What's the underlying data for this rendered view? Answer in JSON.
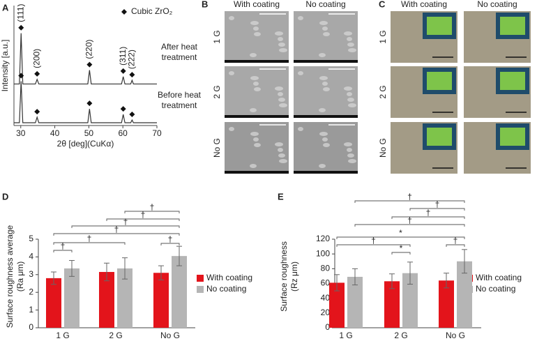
{
  "chart_data": [
    {
      "panel": "A",
      "type": "line",
      "xlabel": "2θ [deg](CuKα)",
      "ylabel": "Intensity [a.u.]",
      "legend": "Cubic ZrO₂",
      "x": [
        28,
        29.6,
        30.1,
        30.6,
        34.3,
        34.8,
        35.3,
        49.7,
        50.2,
        50.7,
        59.6,
        60.1,
        60.6,
        62.3,
        62.7,
        63.1,
        70
      ],
      "series": [
        {
          "name": "After heat treatment",
          "label_lines": [
            "After heat",
            "treatment"
          ],
          "color": "#333333",
          "values": [
            45,
            45,
            100,
            45,
            45,
            50,
            45,
            45,
            60,
            45,
            45,
            53,
            45,
            45,
            49,
            45,
            45
          ]
        },
        {
          "name": "Before heat treatment",
          "label_lines": [
            "Before heat",
            "treatment"
          ],
          "color": "#333333",
          "values": [
            3,
            3,
            48,
            3,
            3,
            9,
            3,
            3,
            18,
            3,
            3,
            12,
            3,
            3,
            6,
            3,
            3
          ]
        }
      ],
      "peak_labels": [
        "(111)",
        "(200)",
        "(220)",
        "(311)",
        "(222)"
      ],
      "xlim": [
        28,
        70
      ],
      "xticks": [
        30,
        40,
        50,
        60,
        70
      ],
      "ylim": [
        0,
        130
      ]
    },
    {
      "panel": "D",
      "type": "bar",
      "ylabel_lines": [
        "Surface roughness average",
        "(Ra μm)"
      ],
      "categories": [
        "1 G",
        "2 G",
        "No G"
      ],
      "series": [
        {
          "name": "With coating",
          "color": "#e3141b",
          "values": [
            2.8,
            3.15,
            3.1
          ],
          "errors": [
            0.35,
            0.5,
            0.4
          ]
        },
        {
          "name": "No coating",
          "color": "#b5b5b5",
          "values": [
            3.35,
            3.35,
            4.05
          ],
          "errors": [
            0.45,
            0.6,
            0.55
          ]
        }
      ],
      "significance": [
        "†",
        "†",
        "†",
        "†",
        "†",
        "†",
        "†"
      ],
      "ylim": [
        0,
        5
      ],
      "yticks": [
        0,
        1,
        2,
        3,
        4,
        5
      ]
    },
    {
      "panel": "E",
      "type": "bar",
      "ylabel_lines": [
        "Surface roughness",
        "(Rz μm)"
      ],
      "categories": [
        "1 G",
        "2 G",
        "No G"
      ],
      "series": [
        {
          "name": "With coating",
          "color": "#e3141b",
          "values": [
            61,
            63,
            64
          ],
          "errors": [
            11,
            10,
            10
          ]
        },
        {
          "name": "No coating",
          "color": "#b5b5b5",
          "values": [
            69,
            74,
            90
          ],
          "errors": [
            11,
            15,
            16
          ]
        }
      ],
      "significance": [
        "†",
        "†",
        "†",
        "†",
        "*",
        "†",
        "*",
        "†"
      ],
      "ylim": [
        0,
        120
      ],
      "yticks": [
        0,
        20,
        40,
        60,
        80,
        100,
        120
      ]
    }
  ],
  "image_panels": [
    {
      "panel": "B",
      "columns": [
        "With coating",
        "No coating"
      ],
      "rows": [
        "1 G",
        "2 G",
        "No G"
      ]
    },
    {
      "panel": "C",
      "columns": [
        "With coating",
        "No coating"
      ],
      "rows": [
        "1 G",
        "2 G",
        "No G"
      ]
    }
  ]
}
